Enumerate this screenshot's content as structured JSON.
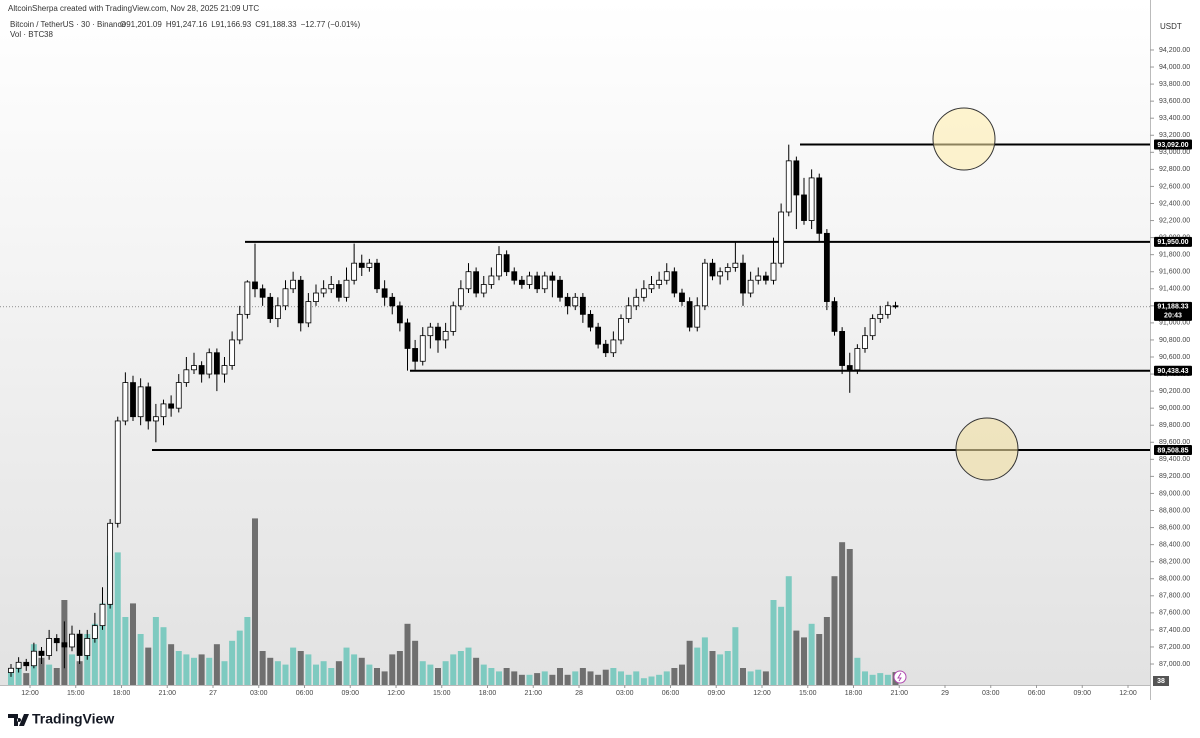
{
  "chart_data": {
    "type": "candlestick",
    "credit": "AltcoinSherpa created with TradingView.com, Nov 28, 2025 21:09 UTC",
    "symbol": "Bitcoin / TetherUS · 30 · Binance",
    "ohlc_labels": [
      "O91,201.09",
      "H91,247.16",
      "L91,166.93",
      "C91,188.33"
    ],
    "change_label": "−12.77 (−0.01%)",
    "volume_label": "Vol · BTC",
    "currency": "USDT",
    "brand": "TradingView",
    "last_price_label": "91,188.33",
    "countdown": "20:43",
    "up_color": "#ffffff",
    "down_color": "#000000",
    "volume_up_color": "#7ecac0",
    "volume_down_color": "#6f6f6f",
    "ylim": [
      86754,
      94786
    ],
    "volume_lim": [
      0,
      2000
    ],
    "yticks": [
      {
        "value": 87000,
        "label": "87,000.00"
      },
      {
        "value": 87200,
        "label": "87,200.00"
      },
      {
        "value": 87400,
        "label": "87,400.00"
      },
      {
        "value": 87600,
        "label": "87,600.00"
      },
      {
        "value": 87800,
        "label": "87,800.00"
      },
      {
        "value": 88000,
        "label": "88,000.00"
      },
      {
        "value": 88200,
        "label": "88,200.00"
      },
      {
        "value": 88400,
        "label": "88,400.00"
      },
      {
        "value": 88600,
        "label": "88,600.00"
      },
      {
        "value": 88800,
        "label": "88,800.00"
      },
      {
        "value": 89000,
        "label": "89,000.00"
      },
      {
        "value": 89200,
        "label": "89,200.00"
      },
      {
        "value": 89400,
        "label": "89,400.00"
      },
      {
        "value": 89600,
        "label": "89,600.00"
      },
      {
        "value": 89800,
        "label": "89,800.00"
      },
      {
        "value": 90000,
        "label": "90,000.00"
      },
      {
        "value": 90200,
        "label": "90,200.00"
      },
      {
        "value": 90400,
        "label": "90,400.00"
      },
      {
        "value": 90600,
        "label": "90,600.00"
      },
      {
        "value": 90800,
        "label": "90,800.00"
      },
      {
        "value": 91000,
        "label": "91,000.00"
      },
      {
        "value": 91200,
        "label": "91,200.00"
      },
      {
        "value": 91400,
        "label": "91,400.00"
      },
      {
        "value": 91600,
        "label": "91,600.00"
      },
      {
        "value": 91800,
        "label": "91,800.00"
      },
      {
        "value": 92000,
        "label": "92,000.00"
      },
      {
        "value": 92200,
        "label": "92,200.00"
      },
      {
        "value": 92400,
        "label": "92,400.00"
      },
      {
        "value": 92600,
        "label": "92,600.00"
      },
      {
        "value": 92800,
        "label": "92,800.00"
      },
      {
        "value": 93000,
        "label": "93,000.00"
      },
      {
        "value": 93200,
        "label": "93,200.00"
      },
      {
        "value": 93400,
        "label": "93,400.00"
      },
      {
        "value": 93600,
        "label": "93,600.00"
      },
      {
        "value": 93800,
        "label": "93,800.00"
      },
      {
        "value": 94000,
        "label": "94,000.00"
      },
      {
        "value": 94200,
        "label": "94,200.00"
      }
    ],
    "levels": [
      {
        "value": 93092,
        "label": "93,092.00"
      },
      {
        "value": 91950,
        "label": "91,950.00"
      },
      {
        "value": 90438.43,
        "label": "90,438.43"
      },
      {
        "value": 89508.85,
        "label": "89,508.85"
      }
    ],
    "time_labels": [
      "12:00",
      "15:00",
      "18:00",
      "21:00",
      "27",
      "03:00",
      "06:00",
      "09:00",
      "12:00",
      "15:00",
      "18:00",
      "21:00",
      "28",
      "03:00",
      "06:00",
      "09:00",
      "12:00",
      "15:00",
      "18:00",
      "21:00",
      "29",
      "03:00",
      "06:00",
      "09:00",
      "12:00"
    ],
    "candles": [
      [
        86900,
        87000,
        86850,
        86950
      ],
      [
        86950,
        87080,
        86900,
        87020
      ],
      [
        87020,
        87060,
        86920,
        86980
      ],
      [
        86980,
        87250,
        86950,
        87150
      ],
      [
        87150,
        87200,
        87000,
        87100
      ],
      [
        87100,
        87400,
        87050,
        87300
      ],
      [
        87300,
        87350,
        87150,
        87250
      ],
      [
        87250,
        87500,
        86950,
        87200
      ],
      [
        87200,
        87450,
        87150,
        87350
      ],
      [
        87350,
        87400,
        87000,
        87100
      ],
      [
        87100,
        87400,
        87050,
        87300
      ],
      [
        87300,
        87600,
        87250,
        87450
      ],
      [
        87450,
        87900,
        87400,
        87700
      ],
      [
        87700,
        88700,
        87650,
        88650
      ],
      [
        88650,
        89900,
        88600,
        89850
      ],
      [
        89850,
        90420,
        89800,
        90300
      ],
      [
        90300,
        90380,
        89850,
        89900
      ],
      [
        89900,
        90350,
        89800,
        90250
      ],
      [
        90250,
        90300,
        89750,
        89850
      ],
      [
        89850,
        90050,
        89600,
        89900
      ],
      [
        89900,
        90100,
        89800,
        90050
      ],
      [
        90050,
        90150,
        89900,
        90000
      ],
      [
        90000,
        90400,
        89950,
        90300
      ],
      [
        90300,
        90600,
        90250,
        90450
      ],
      [
        90450,
        90650,
        90400,
        90500
      ],
      [
        90500,
        90550,
        90300,
        90400
      ],
      [
        90400,
        90700,
        90350,
        90650
      ],
      [
        90650,
        90700,
        90200,
        90400
      ],
      [
        90400,
        90600,
        90300,
        90500
      ],
      [
        90500,
        90900,
        90450,
        90800
      ],
      [
        90800,
        91200,
        90750,
        91100
      ],
      [
        91100,
        91500,
        91050,
        91480
      ],
      [
        91480,
        91930,
        91300,
        91400
      ],
      [
        91400,
        91450,
        91200,
        91300
      ],
      [
        91300,
        91350,
        91000,
        91050
      ],
      [
        91050,
        91300,
        90950,
        91200
      ],
      [
        91200,
        91500,
        91150,
        91400
      ],
      [
        91400,
        91600,
        91350,
        91500
      ],
      [
        91500,
        91550,
        90900,
        91000
      ],
      [
        91000,
        91350,
        90950,
        91250
      ],
      [
        91250,
        91450,
        91200,
        91350
      ],
      [
        91350,
        91500,
        91300,
        91400
      ],
      [
        91400,
        91550,
        91350,
        91450
      ],
      [
        91450,
        91500,
        91250,
        91300
      ],
      [
        91300,
        91650,
        91250,
        91500
      ],
      [
        91500,
        91930,
        91450,
        91700
      ],
      [
        91700,
        91800,
        91550,
        91650
      ],
      [
        91650,
        91750,
        91600,
        91700
      ],
      [
        91700,
        91750,
        91350,
        91400
      ],
      [
        91400,
        91500,
        91200,
        91300
      ],
      [
        91300,
        91350,
        91100,
        91200
      ],
      [
        91200,
        91250,
        90900,
        91000
      ],
      [
        91000,
        91050,
        90440,
        90700
      ],
      [
        90700,
        90800,
        90450,
        90550
      ],
      [
        90550,
        90950,
        90500,
        90850
      ],
      [
        90850,
        91000,
        90700,
        90950
      ],
      [
        90950,
        91000,
        90650,
        90800
      ],
      [
        90800,
        91000,
        90700,
        90900
      ],
      [
        90900,
        91250,
        90850,
        91200
      ],
      [
        91200,
        91500,
        91150,
        91400
      ],
      [
        91400,
        91700,
        91350,
        91600
      ],
      [
        91600,
        91650,
        91300,
        91350
      ],
      [
        91350,
        91550,
        91300,
        91450
      ],
      [
        91450,
        91650,
        91400,
        91550
      ],
      [
        91550,
        91900,
        91500,
        91800
      ],
      [
        91800,
        91850,
        91550,
        91600
      ],
      [
        91600,
        91650,
        91450,
        91500
      ],
      [
        91500,
        91550,
        91400,
        91450
      ],
      [
        91450,
        91600,
        91400,
        91550
      ],
      [
        91550,
        91600,
        91350,
        91400
      ],
      [
        91400,
        91600,
        91350,
        91550
      ],
      [
        91550,
        91600,
        91300,
        91500
      ],
      [
        91500,
        91550,
        91250,
        91300
      ],
      [
        91300,
        91350,
        91100,
        91200
      ],
      [
        91200,
        91350,
        91150,
        91300
      ],
      [
        91300,
        91350,
        91000,
        91100
      ],
      [
        91100,
        91150,
        90900,
        90950
      ],
      [
        90950,
        91000,
        90700,
        90750
      ],
      [
        90750,
        90800,
        90600,
        90650
      ],
      [
        90650,
        90900,
        90600,
        90800
      ],
      [
        90800,
        91100,
        90750,
        91050
      ],
      [
        91050,
        91300,
        91000,
        91200
      ],
      [
        91200,
        91400,
        91150,
        91300
      ],
      [
        91300,
        91500,
        91250,
        91400
      ],
      [
        91400,
        91550,
        91350,
        91450
      ],
      [
        91450,
        91600,
        91400,
        91500
      ],
      [
        91500,
        91700,
        91450,
        91600
      ],
      [
        91600,
        91650,
        91300,
        91350
      ],
      [
        91350,
        91400,
        91200,
        91250
      ],
      [
        91250,
        91300,
        90900,
        90950
      ],
      [
        90950,
        91300,
        90900,
        91200
      ],
      [
        91200,
        91750,
        91150,
        91700
      ],
      [
        91700,
        91750,
        91500,
        91550
      ],
      [
        91550,
        91650,
        91450,
        91600
      ],
      [
        91600,
        91700,
        91500,
        91650
      ],
      [
        91650,
        91950,
        91600,
        91700
      ],
      [
        91700,
        91800,
        91200,
        91350
      ],
      [
        91350,
        91600,
        91300,
        91500
      ],
      [
        91500,
        91650,
        91450,
        91550
      ],
      [
        91550,
        91600,
        91450,
        91500
      ],
      [
        91500,
        92000,
        91450,
        91700
      ],
      [
        91700,
        92400,
        91650,
        92300
      ],
      [
        92300,
        93090,
        92250,
        92900
      ],
      [
        92900,
        92950,
        92100,
        92500
      ],
      [
        92500,
        92700,
        92150,
        92200
      ],
      [
        92200,
        92800,
        92100,
        92700
      ],
      [
        92700,
        92750,
        91950,
        92050
      ],
      [
        92050,
        92100,
        91150,
        91250
      ],
      [
        91250,
        91300,
        90850,
        90900
      ],
      [
        90900,
        90950,
        90400,
        90500
      ],
      [
        90500,
        90650,
        90180,
        90450
      ],
      [
        90450,
        90750,
        90400,
        90700
      ],
      [
        90700,
        90950,
        90650,
        90850
      ],
      [
        90850,
        91100,
        90800,
        91050
      ],
      [
        91050,
        91200,
        91000,
        91100
      ],
      [
        91100,
        91250,
        91050,
        91201.09
      ],
      [
        91201.09,
        91247.16,
        91166.93,
        91188.33
      ]
    ],
    "volumes": [
      40,
      60,
      35,
      120,
      80,
      60,
      50,
      250,
      90,
      70,
      150,
      180,
      240,
      380,
      390,
      200,
      240,
      150,
      110,
      200,
      170,
      120,
      100,
      90,
      80,
      90,
      80,
      120,
      70,
      130,
      160,
      200,
      490,
      100,
      80,
      70,
      60,
      110,
      100,
      90,
      60,
      70,
      50,
      70,
      110,
      90,
      80,
      60,
      50,
      40,
      90,
      100,
      180,
      130,
      70,
      60,
      50,
      70,
      90,
      100,
      110,
      80,
      60,
      50,
      40,
      50,
      40,
      30,
      30,
      35,
      40,
      30,
      50,
      30,
      40,
      50,
      40,
      30,
      45,
      50,
      40,
      30,
      40,
      20,
      25,
      30,
      40,
      50,
      60,
      130,
      110,
      140,
      100,
      90,
      100,
      170,
      50,
      40,
      45,
      40,
      250,
      230,
      320,
      160,
      140,
      180,
      150,
      200,
      320,
      420,
      400,
      80,
      40,
      30,
      35,
      30,
      38
    ]
  }
}
